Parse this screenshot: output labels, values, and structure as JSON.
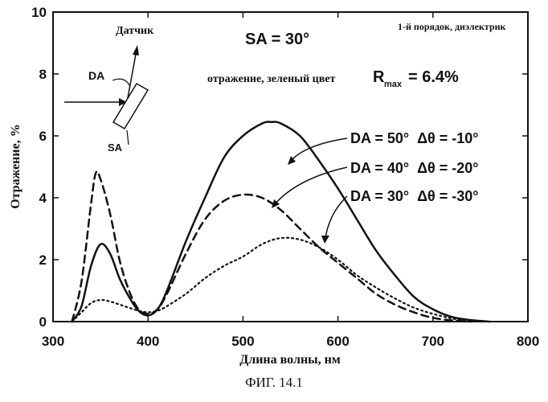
{
  "chart_data": {
    "type": "line",
    "xlabel": "Длина волны, нм",
    "ylabel": "Отражение, %",
    "xlim": [
      300,
      800
    ],
    "ylim": [
      0,
      10
    ],
    "xticks": [
      "300",
      "400",
      "500",
      "600",
      "700",
      "800"
    ],
    "yticks": [
      "0",
      "2",
      "4",
      "6",
      "8",
      "10"
    ],
    "grid": false,
    "series": [
      {
        "style": "solid",
        "x": [
          320,
          330,
          340,
          350,
          360,
          370,
          380,
          390,
          400,
          410,
          420,
          440,
          460,
          480,
          500,
          520,
          530,
          540,
          560,
          580,
          600,
          620,
          640,
          660,
          680,
          700,
          720,
          740,
          760
        ],
        "y": [
          0.0,
          0.5,
          1.8,
          2.5,
          2.2,
          1.4,
          0.8,
          0.35,
          0.2,
          0.4,
          1.0,
          2.6,
          4.0,
          5.3,
          6.0,
          6.4,
          6.45,
          6.4,
          6.0,
          5.2,
          4.3,
          3.3,
          2.3,
          1.5,
          0.8,
          0.4,
          0.15,
          0.05,
          0.0
        ]
      },
      {
        "style": "dashed",
        "x": [
          320,
          330,
          340,
          345,
          350,
          360,
          370,
          380,
          390,
          400,
          410,
          420,
          440,
          460,
          480,
          500,
          520,
          540,
          560,
          580,
          600,
          620,
          640,
          660,
          680,
          700,
          720,
          740
        ],
        "y": [
          0.0,
          1.3,
          3.8,
          4.8,
          4.6,
          3.5,
          2.0,
          1.0,
          0.4,
          0.25,
          0.4,
          0.9,
          2.2,
          3.3,
          3.9,
          4.1,
          4.0,
          3.6,
          3.0,
          2.4,
          1.9,
          1.4,
          0.9,
          0.55,
          0.3,
          0.12,
          0.04,
          0.0
        ]
      },
      {
        "style": "dotted",
        "x": [
          320,
          330,
          340,
          350,
          360,
          370,
          380,
          390,
          400,
          410,
          420,
          440,
          460,
          480,
          500,
          520,
          540,
          560,
          580,
          600,
          620,
          640,
          660,
          680,
          700,
          720,
          740
        ],
        "y": [
          0.0,
          0.3,
          0.6,
          0.7,
          0.65,
          0.55,
          0.45,
          0.35,
          0.3,
          0.35,
          0.5,
          0.9,
          1.4,
          1.8,
          2.1,
          2.5,
          2.7,
          2.65,
          2.4,
          2.0,
          1.5,
          1.1,
          0.75,
          0.45,
          0.25,
          0.1,
          0.0
        ]
      }
    ],
    "annotations": {
      "sensor": "Датчик",
      "da": "DA",
      "sa": "SA",
      "sa_value": "SA = 30°",
      "order": "1-й порядок, диэлектрик",
      "reflect_prefix": "отражение, зеленый цвет",
      "r": "R",
      "rmax_sub": "max",
      "rmax_value": "= 6.4%",
      "labels": [
        "DA = 50°  Δθ = -10°",
        "DA = 40°  Δθ = -20°",
        "DA = 30°  Δθ = -30°"
      ]
    }
  },
  "caption": "ФИГ. 14.1"
}
